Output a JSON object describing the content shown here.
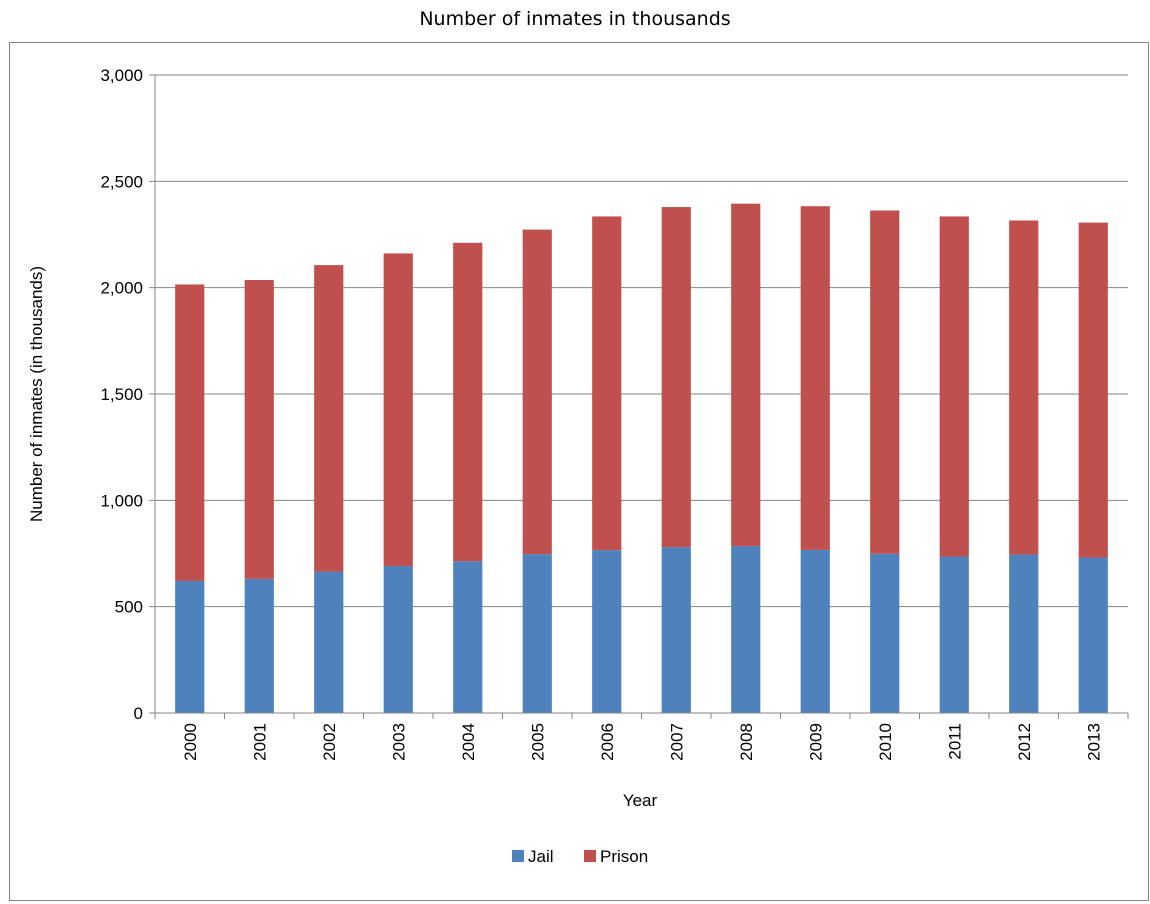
{
  "chart_data": {
    "type": "bar",
    "stacked": true,
    "title": "Number of inmates in thousands",
    "xlabel": "Year",
    "ylabel": "Number of inmates (in thousands)",
    "categories": [
      "2000",
      "2001",
      "2002",
      "2003",
      "2004",
      "2005",
      "2006",
      "2007",
      "2008",
      "2009",
      "2010",
      "2011",
      "2012",
      "2013"
    ],
    "series": [
      {
        "name": "Jail",
        "color": "#4f81bd",
        "values": [
          621,
          631,
          665,
          691,
          714,
          747,
          766,
          780,
          785,
          767,
          749,
          736,
          745,
          731
        ]
      },
      {
        "name": "Prison",
        "color": "#c0504d",
        "values": [
          1394,
          1405,
          1441,
          1470,
          1497,
          1526,
          1569,
          1599,
          1610,
          1616,
          1614,
          1599,
          1571,
          1575
        ]
      }
    ],
    "ylim": [
      0,
      3000
    ],
    "yticks": [
      "0",
      "500",
      "1,000",
      "1,500",
      "2,000",
      "2,500",
      "3,000"
    ],
    "ytick_values": [
      0,
      500,
      1000,
      1500,
      2000,
      2500,
      3000
    ],
    "grid": true,
    "legend": "bottom"
  }
}
